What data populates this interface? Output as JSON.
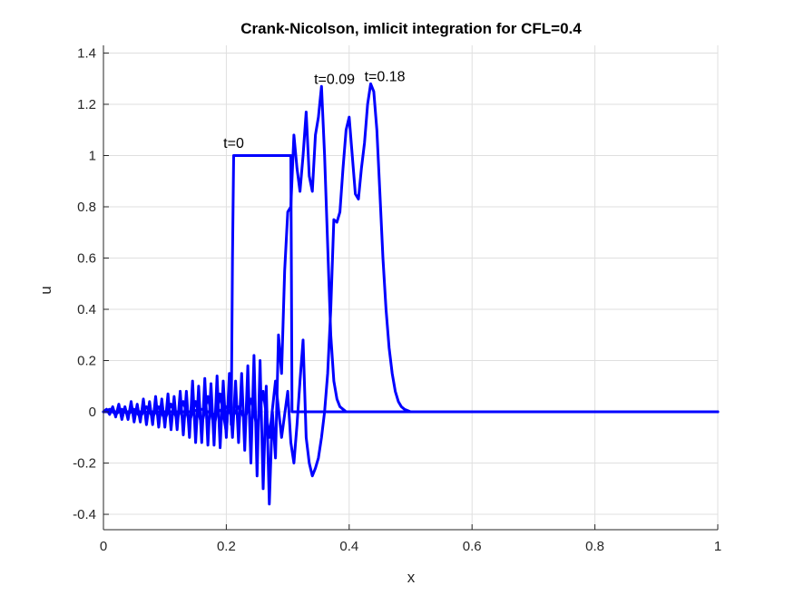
{
  "chart_data": {
    "type": "line",
    "title": "Crank-Nicolson, imlicit integration for CFL=0.4",
    "xlabel": "x",
    "ylabel": "u",
    "xlim": [
      0,
      1
    ],
    "ylim": [
      -0.46,
      1.43
    ],
    "xticks": [
      0,
      0.2,
      0.4,
      0.6,
      0.8,
      1
    ],
    "xtick_labels": [
      "0",
      "0.2",
      "0.4",
      "0.6",
      "0.8",
      "1"
    ],
    "yticks": [
      -0.4,
      -0.2,
      0,
      0.2,
      0.4,
      0.6,
      0.8,
      1,
      1.2,
      1.4
    ],
    "ytick_labels": [
      "-0.4",
      "-0.2",
      "0",
      "0.2",
      "0.4",
      "0.6",
      "0.8",
      "1",
      "1.2",
      "1.4"
    ],
    "grid": true,
    "line_color": "#0000ff",
    "annotations": [
      {
        "text": "t=0",
        "x": 0.212,
        "y": 1.03
      },
      {
        "text": "t=0.09",
        "x": 0.376,
        "y": 1.28
      },
      {
        "text": "t=0.18",
        "x": 0.458,
        "y": 1.29
      }
    ],
    "series": [
      {
        "x": [
          0,
          0.005,
          0.01,
          0.015,
          0.02,
          0.025,
          0.03,
          0.035,
          0.04,
          0.045,
          0.05,
          0.055,
          0.06,
          0.065,
          0.07,
          0.075,
          0.08,
          0.085,
          0.09,
          0.095,
          0.1,
          0.105,
          0.11,
          0.115,
          0.12,
          0.125,
          0.13,
          0.135,
          0.14,
          0.145,
          0.15,
          0.155,
          0.16,
          0.165,
          0.17,
          0.175,
          0.18,
          0.185,
          0.19,
          0.195,
          0.2,
          0.205,
          0.208,
          0.21,
          0.212,
          0.215,
          0.22,
          0.23,
          0.25,
          0.27,
          0.29,
          0.3,
          0.305,
          0.306,
          0.307,
          0.31,
          0.32,
          0.35,
          0.4,
          0.5,
          0.6,
          0.7,
          0.8,
          0.9,
          1.0
        ],
        "y": [
          0,
          0.01,
          -0.01,
          0.02,
          -0.02,
          0.03,
          -0.03,
          0.02,
          -0.03,
          0.04,
          -0.04,
          0.03,
          -0.04,
          0.05,
          -0.05,
          0.04,
          -0.05,
          0.06,
          -0.06,
          0.05,
          -0.06,
          0.07,
          -0.07,
          0.06,
          -0.07,
          0.08,
          -0.09,
          0.08,
          -0.1,
          0.12,
          -0.12,
          0.1,
          -0.12,
          0.13,
          -0.13,
          0.11,
          -0.13,
          0.14,
          -0.14,
          0.12,
          -0.1,
          0.15,
          -0.05,
          0.6,
          1.0,
          1.0,
          1.0,
          1.0,
          1.0,
          1.0,
          1.0,
          1.0,
          1.0,
          0.5,
          0.0,
          0.0,
          0.0,
          0.0,
          0.0,
          0.0,
          0.0,
          0.0,
          0.0,
          0.0,
          0.0
        ]
      },
      {
        "x": [
          0,
          0.01,
          0.02,
          0.03,
          0.04,
          0.05,
          0.06,
          0.07,
          0.08,
          0.09,
          0.1,
          0.11,
          0.12,
          0.13,
          0.14,
          0.15,
          0.16,
          0.17,
          0.18,
          0.19,
          0.2,
          0.205,
          0.21,
          0.215,
          0.22,
          0.225,
          0.23,
          0.235,
          0.24,
          0.245,
          0.25,
          0.255,
          0.26,
          0.265,
          0.27,
          0.275,
          0.28,
          0.285,
          0.29,
          0.295,
          0.3,
          0.305,
          0.31,
          0.315,
          0.32,
          0.325,
          0.33,
          0.335,
          0.34,
          0.345,
          0.35,
          0.355,
          0.36,
          0.365,
          0.37,
          0.375,
          0.38,
          0.385,
          0.39,
          0.395,
          0.4,
          0.41,
          0.42,
          0.45,
          0.5,
          0.6,
          0.7,
          0.8,
          0.9,
          1.0
        ],
        "y": [
          0,
          0.01,
          -0.01,
          0.01,
          -0.01,
          0.01,
          -0.02,
          0.02,
          -0.02,
          0.02,
          -0.03,
          0.03,
          -0.03,
          0.04,
          -0.04,
          0.04,
          -0.05,
          0.06,
          -0.06,
          0.07,
          -0.08,
          0.1,
          -0.1,
          0.12,
          -0.12,
          0.15,
          -0.15,
          0.18,
          -0.2,
          0.22,
          -0.25,
          0.2,
          -0.3,
          0.1,
          -0.36,
          0.0,
          -0.18,
          0.3,
          0.15,
          0.55,
          0.78,
          0.8,
          1.08,
          0.95,
          0.86,
          1.0,
          1.17,
          0.92,
          0.86,
          1.08,
          1.15,
          1.27,
          1.0,
          0.65,
          0.3,
          0.12,
          0.05,
          0.02,
          0.01,
          0.0,
          0.0,
          0.0,
          0.0,
          0.0,
          0.0,
          0.0,
          0.0,
          0.0,
          0.0,
          0.0
        ]
      },
      {
        "x": [
          0,
          0.02,
          0.04,
          0.06,
          0.08,
          0.1,
          0.12,
          0.14,
          0.16,
          0.18,
          0.2,
          0.21,
          0.22,
          0.23,
          0.24,
          0.25,
          0.26,
          0.27,
          0.28,
          0.29,
          0.3,
          0.305,
          0.31,
          0.315,
          0.32,
          0.325,
          0.33,
          0.335,
          0.34,
          0.345,
          0.35,
          0.355,
          0.36,
          0.365,
          0.37,
          0.375,
          0.38,
          0.385,
          0.39,
          0.395,
          0.4,
          0.405,
          0.41,
          0.415,
          0.42,
          0.425,
          0.43,
          0.435,
          0.44,
          0.445,
          0.45,
          0.455,
          0.46,
          0.465,
          0.47,
          0.475,
          0.48,
          0.485,
          0.49,
          0.495,
          0.5,
          0.51,
          0.52,
          0.53,
          0.55,
          0.6,
          0.7,
          0.8,
          0.9,
          1.0
        ],
        "y": [
          0,
          0.0,
          0.0,
          0.0,
          0.0,
          0.0,
          0.0,
          0.0,
          0.01,
          -0.01,
          0.02,
          -0.02,
          0.02,
          -0.03,
          0.05,
          -0.06,
          0.08,
          -0.1,
          0.12,
          -0.1,
          0.08,
          -0.12,
          -0.2,
          -0.05,
          0.12,
          0.28,
          -0.1,
          -0.2,
          -0.25,
          -0.22,
          -0.18,
          -0.1,
          0.0,
          0.15,
          0.4,
          0.75,
          0.74,
          0.78,
          0.95,
          1.1,
          1.15,
          1.0,
          0.85,
          0.83,
          0.95,
          1.05,
          1.2,
          1.28,
          1.25,
          1.1,
          0.85,
          0.6,
          0.4,
          0.25,
          0.15,
          0.08,
          0.04,
          0.02,
          0.01,
          0.005,
          0.0,
          0.0,
          0.0,
          0.0,
          0.0,
          0.0,
          0.0,
          0.0,
          0.0,
          0.0
        ]
      }
    ]
  }
}
